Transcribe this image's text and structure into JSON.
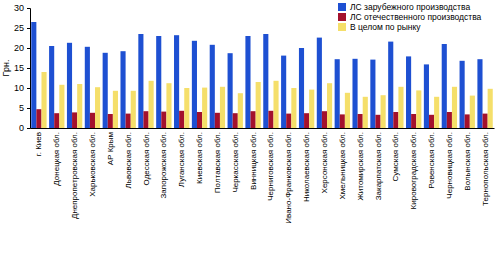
{
  "chart_data": {
    "type": "bar",
    "y_label": "Грн.",
    "categories": [
      "г. Киев",
      "Донецкая обл.",
      "Днепропетровская обл.",
      "Харьковская обл.",
      "АР Крым",
      "Львовская обл.",
      "Одесская обл.",
      "Запорожская обл.",
      "Луганская обл.",
      "Киевская обл.",
      "Полтавская обл.",
      "Черкасская обл.",
      "Винницкая обл.",
      "Черниговская обл.",
      "Ивано-Франковская обл.",
      "Николаевская обл.",
      "Херсонская обл.",
      "Хмельницкая обл.",
      "Житомирская обл.",
      "Закарпатская обл.",
      "Сумская обл.",
      "Кировоградская обл.",
      "Ровенская обл.",
      "Черновицкая обл.",
      "Волынская обл.",
      "Тернопольская обл."
    ],
    "series": [
      {
        "name": "ЛС зарубежного производства",
        "color": "#1e50d2",
        "values": [
          26.5,
          20.5,
          21.3,
          20.3,
          18.8,
          19.2,
          23.5,
          23,
          23.2,
          21.8,
          20.8,
          18.7,
          23,
          23.5,
          18.1,
          20,
          22.6,
          17.2,
          17.3,
          17.1,
          21.6,
          17.9,
          15.9,
          21,
          16.8,
          17.2
        ]
      },
      {
        "name": "ЛС отечественного производства",
        "color": "#a3112d",
        "values": [
          4.7,
          3.7,
          3.9,
          3.8,
          3.5,
          3.6,
          4.2,
          4.1,
          4.3,
          4.0,
          3.8,
          3.7,
          4.2,
          4.3,
          3.6,
          3.7,
          4.2,
          3.4,
          3.5,
          3.3,
          4.0,
          3.5,
          3.3,
          4.0,
          3.4,
          3.6
        ]
      },
      {
        "name": "В целом по рынку",
        "color": "#f5df6a",
        "values": [
          14,
          10.8,
          11,
          10.2,
          9.3,
          9.3,
          11.8,
          11.2,
          10,
          10.1,
          10.3,
          8.7,
          11.5,
          11.8,
          10,
          9.6,
          11.2,
          8.8,
          7.8,
          8.2,
          10.3,
          9.4,
          7.8,
          10.3,
          8.1,
          9.8
        ]
      }
    ],
    "ylim": [
      0,
      30
    ],
    "yticks": [
      0,
      5,
      10,
      15,
      20,
      25,
      30
    ],
    "grid": false,
    "legend": "upper right"
  }
}
